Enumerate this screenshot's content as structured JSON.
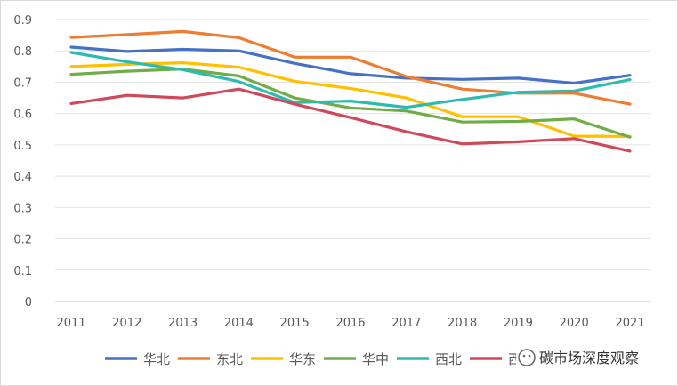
{
  "chart_data": {
    "type": "line",
    "categories": [
      "2011",
      "2012",
      "2013",
      "2014",
      "2015",
      "2016",
      "2017",
      "2018",
      "2019",
      "2020",
      "2021"
    ],
    "ylim": [
      0,
      0.9
    ],
    "yticks": [
      "0",
      "0.1",
      "0.2",
      "0.3",
      "0.4",
      "0.5",
      "0.6",
      "0.7",
      "0.8",
      "0.9"
    ],
    "grid": true,
    "legend_position": "bottom",
    "series": [
      {
        "name": "华北",
        "color": "#4472c4",
        "values": [
          0.812,
          0.798,
          0.805,
          0.8,
          0.76,
          0.727,
          0.713,
          0.709,
          0.713,
          0.697,
          0.722
        ]
      },
      {
        "name": "东北",
        "color": "#ed7d31",
        "values": [
          0.843,
          0.852,
          0.862,
          0.842,
          0.78,
          0.78,
          0.718,
          0.678,
          0.665,
          0.665,
          0.63
        ]
      },
      {
        "name": "华东",
        "color": "#ffc000",
        "values": [
          0.75,
          0.757,
          0.762,
          0.748,
          0.703,
          0.68,
          0.65,
          0.59,
          0.59,
          0.528,
          0.527
        ]
      },
      {
        "name": "华中",
        "color": "#70ad47",
        "values": [
          0.725,
          0.735,
          0.742,
          0.72,
          0.65,
          0.618,
          0.608,
          0.573,
          0.575,
          0.583,
          0.525
        ]
      },
      {
        "name": "西北",
        "color": "#2dbbb0",
        "values": [
          0.795,
          0.765,
          0.74,
          0.702,
          0.635,
          0.64,
          0.62,
          0.645,
          0.668,
          0.672,
          0.708
        ]
      },
      {
        "name": "西南",
        "color": "#d0495a",
        "values": [
          0.632,
          0.658,
          0.65,
          0.678,
          0.63,
          0.587,
          0.542,
          0.503,
          0.51,
          0.52,
          0.48
        ]
      }
    ]
  },
  "watermark": {
    "text": "碳市场深度观察",
    "icon": "wechat-icon"
  }
}
